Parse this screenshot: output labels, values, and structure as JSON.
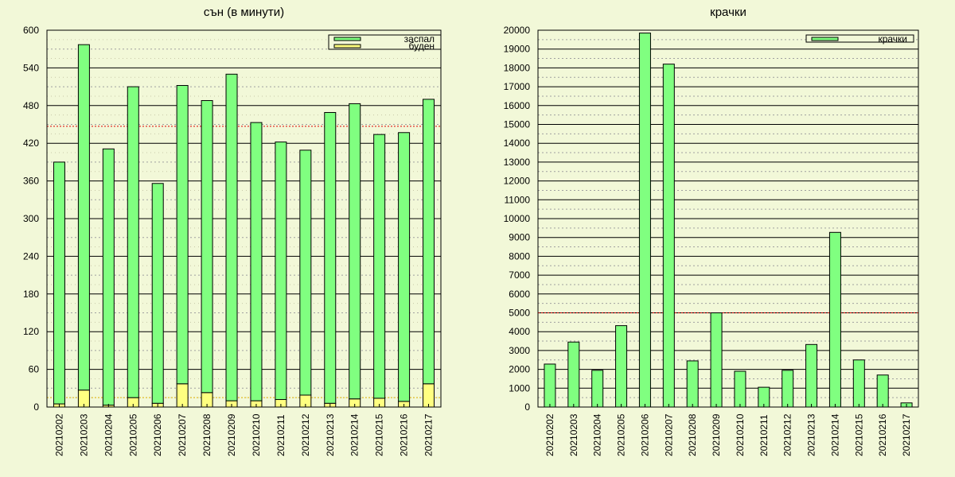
{
  "chart_data": [
    {
      "type": "bar",
      "stacked": true,
      "title": "сън (в минути)",
      "categories": [
        "20210202",
        "20210203",
        "20210204",
        "20210205",
        "20210206",
        "20210207",
        "20210208",
        "20210209",
        "20210210",
        "20210211",
        "20210212",
        "20210213",
        "20210214",
        "20210215",
        "20210216",
        "20210217"
      ],
      "series": [
        {
          "name": "заспал",
          "color": "#80ff80",
          "values": [
            385,
            550,
            408,
            495,
            350,
            475,
            465,
            520,
            443,
            410,
            390,
            463,
            470,
            420,
            428,
            453
          ]
        },
        {
          "name": "буден",
          "color": "#ffff80",
          "values": [
            5,
            27,
            3,
            15,
            6,
            37,
            23,
            10,
            10,
            12,
            19,
            6,
            13,
            14,
            9,
            37
          ]
        }
      ],
      "ylim": [
        0,
        600
      ],
      "yticks": [
        0,
        60,
        120,
        180,
        240,
        300,
        360,
        420,
        480,
        540,
        600
      ],
      "reference_lines": [
        {
          "value": 447,
          "color": "#e00000"
        },
        {
          "value": 15,
          "color": "#e0b000"
        }
      ],
      "grid": true,
      "legend_position": "top-right"
    },
    {
      "type": "bar",
      "title": "крачки",
      "categories": [
        "20210202",
        "20210203",
        "20210204",
        "20210205",
        "20210206",
        "20210207",
        "20210208",
        "20210209",
        "20210210",
        "20210211",
        "20210212",
        "20210213",
        "20210214",
        "20210215",
        "20210216",
        "20210217"
      ],
      "series": [
        {
          "name": "крачки",
          "color": "#80ff80",
          "values": [
            2280,
            3450,
            1950,
            4320,
            19850,
            18200,
            2450,
            5000,
            1900,
            1050,
            1950,
            3320,
            9270,
            2500,
            1700,
            220
          ]
        }
      ],
      "ylim": [
        0,
        20000
      ],
      "yticks": [
        0,
        1000,
        2000,
        3000,
        4000,
        5000,
        6000,
        7000,
        8000,
        9000,
        10000,
        11000,
        12000,
        13000,
        14000,
        15000,
        16000,
        17000,
        18000,
        19000,
        20000
      ],
      "reference_lines": [
        {
          "value": 5000,
          "color": "#e00000"
        }
      ],
      "grid": true,
      "legend_position": "top-right"
    }
  ]
}
